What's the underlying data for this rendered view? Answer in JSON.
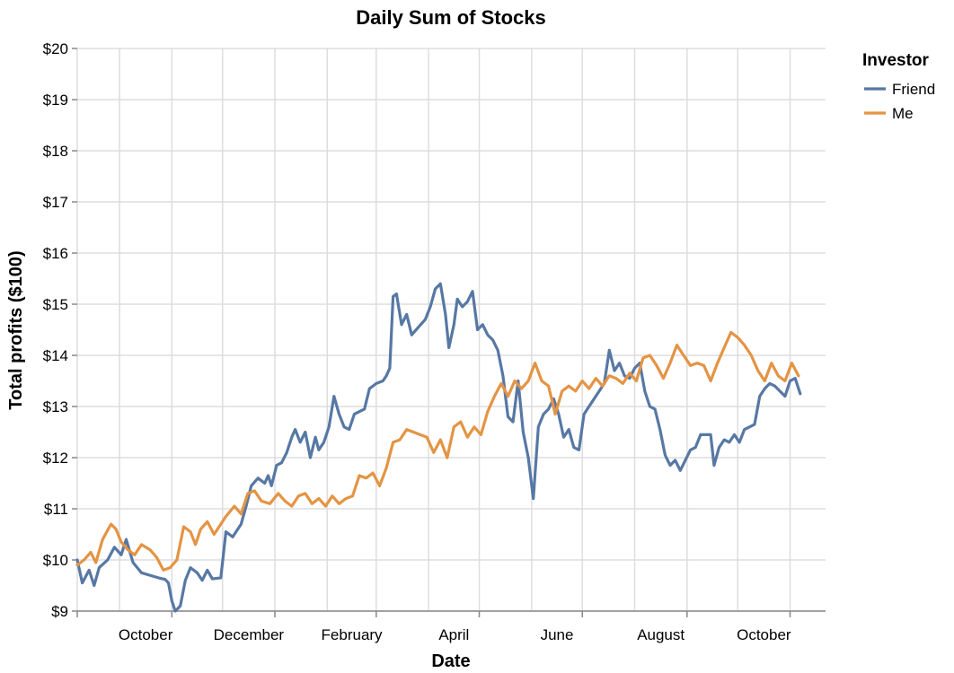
{
  "chart_data": {
    "type": "line",
    "title": "Daily Sum of Stocks",
    "xlabel": "Date",
    "ylabel": "Total profits ($100)",
    "x_ticks": [
      "October",
      "December",
      "February",
      "April",
      "June",
      "August",
      "October"
    ],
    "y_ticks": [
      "$9",
      "$10",
      "$11",
      "$12",
      "$13",
      "$14",
      "$15",
      "$16",
      "$17",
      "$18",
      "$19",
      "$20"
    ],
    "ylim": [
      9,
      20
    ],
    "xlim": [
      "2019-09-06",
      "2020-11-22"
    ],
    "grid": true,
    "legend": {
      "title": "Investor",
      "position": "top-right"
    },
    "series": [
      {
        "name": "Friend",
        "color": "#5778a4",
        "points": [
          [
            "2019-09-06",
            10.0
          ],
          [
            "2019-09-09",
            9.55
          ],
          [
            "2019-09-13",
            9.8
          ],
          [
            "2019-09-16",
            9.5
          ],
          [
            "2019-09-19",
            9.85
          ],
          [
            "2019-09-24",
            10.0
          ],
          [
            "2019-09-28",
            10.25
          ],
          [
            "2019-10-02",
            10.1
          ],
          [
            "2019-10-05",
            10.4
          ],
          [
            "2019-10-09",
            9.95
          ],
          [
            "2019-10-14",
            9.75
          ],
          [
            "2019-10-19",
            9.7
          ],
          [
            "2019-10-24",
            9.65
          ],
          [
            "2019-10-28",
            9.62
          ],
          [
            "2019-10-30",
            9.55
          ],
          [
            "2019-11-01",
            9.2
          ],
          [
            "2019-11-03",
            9.0
          ],
          [
            "2019-11-06",
            9.1
          ],
          [
            "2019-11-09",
            9.6
          ],
          [
            "2019-11-12",
            9.85
          ],
          [
            "2019-11-16",
            9.75
          ],
          [
            "2019-11-19",
            9.6
          ],
          [
            "2019-11-22",
            9.8
          ],
          [
            "2019-11-25",
            9.63
          ],
          [
            "2019-11-30",
            9.65
          ],
          [
            "2019-12-03",
            10.55
          ],
          [
            "2019-12-07",
            10.45
          ],
          [
            "2019-12-12",
            10.7
          ],
          [
            "2019-12-15",
            11.05
          ],
          [
            "2019-12-18",
            11.45
          ],
          [
            "2019-12-22",
            11.6
          ],
          [
            "2019-12-26",
            11.5
          ],
          [
            "2019-12-28",
            11.65
          ],
          [
            "2019-12-30",
            11.45
          ],
          [
            "2020-01-02",
            11.85
          ],
          [
            "2020-01-05",
            11.9
          ],
          [
            "2020-01-08",
            12.1
          ],
          [
            "2020-01-11",
            12.4
          ],
          [
            "2020-01-13",
            12.55
          ],
          [
            "2020-01-16",
            12.3
          ],
          [
            "2020-01-19",
            12.5
          ],
          [
            "2020-01-22",
            12.0
          ],
          [
            "2020-01-25",
            12.4
          ],
          [
            "2020-01-27",
            12.15
          ],
          [
            "2020-01-30",
            12.3
          ],
          [
            "2020-02-02",
            12.6
          ],
          [
            "2020-02-05",
            13.2
          ],
          [
            "2020-02-08",
            12.85
          ],
          [
            "2020-02-11",
            12.6
          ],
          [
            "2020-02-14",
            12.55
          ],
          [
            "2020-02-17",
            12.85
          ],
          [
            "2020-02-20",
            12.9
          ],
          [
            "2020-02-23",
            12.95
          ],
          [
            "2020-02-26",
            13.35
          ],
          [
            "2020-03-01",
            13.45
          ],
          [
            "2020-03-05",
            13.5
          ],
          [
            "2020-03-07",
            13.6
          ],
          [
            "2020-03-09",
            13.75
          ],
          [
            "2020-03-11",
            15.15
          ],
          [
            "2020-03-13",
            15.2
          ],
          [
            "2020-03-16",
            14.6
          ],
          [
            "2020-03-19",
            14.8
          ],
          [
            "2020-03-22",
            14.4
          ],
          [
            "2020-03-26",
            14.55
          ],
          [
            "2020-03-30",
            14.7
          ],
          [
            "2020-04-02",
            14.95
          ],
          [
            "2020-04-05",
            15.3
          ],
          [
            "2020-04-08",
            15.4
          ],
          [
            "2020-04-11",
            14.8
          ],
          [
            "2020-04-13",
            14.15
          ],
          [
            "2020-04-16",
            14.6
          ],
          [
            "2020-04-18",
            15.1
          ],
          [
            "2020-04-21",
            14.95
          ],
          [
            "2020-04-24",
            15.05
          ],
          [
            "2020-04-27",
            15.25
          ],
          [
            "2020-04-30",
            14.5
          ],
          [
            "2020-05-03",
            14.6
          ],
          [
            "2020-05-06",
            14.4
          ],
          [
            "2020-05-09",
            14.3
          ],
          [
            "2020-05-12",
            14.1
          ],
          [
            "2020-05-15",
            13.6
          ],
          [
            "2020-05-18",
            12.8
          ],
          [
            "2020-05-21",
            12.7
          ],
          [
            "2020-05-24",
            13.5
          ],
          [
            "2020-05-27",
            12.5
          ],
          [
            "2020-05-30",
            12.0
          ],
          [
            "2020-06-02",
            11.2
          ],
          [
            "2020-06-05",
            12.6
          ],
          [
            "2020-06-08",
            12.85
          ],
          [
            "2020-06-11",
            12.95
          ],
          [
            "2020-06-14",
            13.15
          ],
          [
            "2020-06-17",
            12.85
          ],
          [
            "2020-06-20",
            12.4
          ],
          [
            "2020-06-23",
            12.55
          ],
          [
            "2020-06-26",
            12.2
          ],
          [
            "2020-06-29",
            12.15
          ],
          [
            "2020-07-02",
            12.85
          ],
          [
            "2020-07-05",
            13.0
          ],
          [
            "2020-07-08",
            13.15
          ],
          [
            "2020-07-11",
            13.3
          ],
          [
            "2020-07-14",
            13.45
          ],
          [
            "2020-07-17",
            14.1
          ],
          [
            "2020-07-20",
            13.7
          ],
          [
            "2020-07-23",
            13.85
          ],
          [
            "2020-07-26",
            13.6
          ],
          [
            "2020-07-29",
            13.55
          ],
          [
            "2020-08-01",
            13.75
          ],
          [
            "2020-08-04",
            13.85
          ],
          [
            "2020-08-07",
            13.3
          ],
          [
            "2020-08-10",
            13.0
          ],
          [
            "2020-08-13",
            12.95
          ],
          [
            "2020-08-16",
            12.55
          ],
          [
            "2020-08-19",
            12.05
          ],
          [
            "2020-08-22",
            11.85
          ],
          [
            "2020-08-25",
            11.95
          ],
          [
            "2020-08-28",
            11.75
          ],
          [
            "2020-08-31",
            11.95
          ],
          [
            "2020-09-03",
            12.15
          ],
          [
            "2020-09-06",
            12.2
          ],
          [
            "2020-09-09",
            12.45
          ],
          [
            "2020-09-12",
            12.45
          ],
          [
            "2020-09-15",
            12.45
          ],
          [
            "2020-09-17",
            11.85
          ],
          [
            "2020-09-20",
            12.2
          ],
          [
            "2020-09-23",
            12.35
          ],
          [
            "2020-09-26",
            12.3
          ],
          [
            "2020-09-29",
            12.45
          ],
          [
            "2020-10-02",
            12.3
          ],
          [
            "2020-10-05",
            12.55
          ],
          [
            "2020-10-08",
            12.6
          ],
          [
            "2020-10-11",
            12.65
          ],
          [
            "2020-10-14",
            13.2
          ],
          [
            "2020-10-17",
            13.35
          ],
          [
            "2020-10-20",
            13.45
          ],
          [
            "2020-10-23",
            13.4
          ],
          [
            "2020-10-26",
            13.3
          ],
          [
            "2020-10-29",
            13.2
          ],
          [
            "2020-11-01",
            13.5
          ],
          [
            "2020-11-04",
            13.55
          ],
          [
            "2020-11-07",
            13.25
          ]
        ]
      },
      {
        "name": "Me",
        "color": "#e49444",
        "points": [
          [
            "2019-09-06",
            9.9
          ],
          [
            "2019-09-10",
            10.0
          ],
          [
            "2019-09-14",
            10.15
          ],
          [
            "2019-09-17",
            9.95
          ],
          [
            "2019-09-21",
            10.4
          ],
          [
            "2019-09-26",
            10.7
          ],
          [
            "2019-09-29",
            10.6
          ],
          [
            "2019-10-02",
            10.35
          ],
          [
            "2019-10-06",
            10.2
          ],
          [
            "2019-10-10",
            10.1
          ],
          [
            "2019-10-14",
            10.3
          ],
          [
            "2019-10-19",
            10.2
          ],
          [
            "2019-10-23",
            10.05
          ],
          [
            "2019-10-27",
            9.8
          ],
          [
            "2019-10-31",
            9.85
          ],
          [
            "2019-11-04",
            10.0
          ],
          [
            "2019-11-08",
            10.65
          ],
          [
            "2019-11-12",
            10.55
          ],
          [
            "2019-11-15",
            10.3
          ],
          [
            "2019-11-18",
            10.6
          ],
          [
            "2019-11-22",
            10.75
          ],
          [
            "2019-11-26",
            10.5
          ],
          [
            "2019-11-30",
            10.7
          ],
          [
            "2019-12-03",
            10.85
          ],
          [
            "2019-12-08",
            11.05
          ],
          [
            "2019-12-12",
            10.9
          ],
          [
            "2019-12-16",
            11.3
          ],
          [
            "2019-12-20",
            11.35
          ],
          [
            "2019-12-24",
            11.15
          ],
          [
            "2019-12-29",
            11.1
          ],
          [
            "2020-01-03",
            11.3
          ],
          [
            "2020-01-07",
            11.15
          ],
          [
            "2020-01-11",
            11.05
          ],
          [
            "2020-01-15",
            11.25
          ],
          [
            "2020-01-19",
            11.3
          ],
          [
            "2020-01-23",
            11.1
          ],
          [
            "2020-01-27",
            11.2
          ],
          [
            "2020-01-31",
            11.05
          ],
          [
            "2020-02-04",
            11.25
          ],
          [
            "2020-02-08",
            11.1
          ],
          [
            "2020-02-12",
            11.2
          ],
          [
            "2020-02-16",
            11.25
          ],
          [
            "2020-02-20",
            11.65
          ],
          [
            "2020-02-24",
            11.6
          ],
          [
            "2020-02-28",
            11.7
          ],
          [
            "2020-03-03",
            11.45
          ],
          [
            "2020-03-07",
            11.8
          ],
          [
            "2020-03-11",
            12.3
          ],
          [
            "2020-03-15",
            12.35
          ],
          [
            "2020-03-19",
            12.55
          ],
          [
            "2020-03-23",
            12.5
          ],
          [
            "2020-03-27",
            12.45
          ],
          [
            "2020-03-31",
            12.4
          ],
          [
            "2020-04-04",
            12.1
          ],
          [
            "2020-04-08",
            12.35
          ],
          [
            "2020-04-12",
            12.0
          ],
          [
            "2020-04-16",
            12.6
          ],
          [
            "2020-04-20",
            12.7
          ],
          [
            "2020-04-24",
            12.4
          ],
          [
            "2020-04-28",
            12.6
          ],
          [
            "2020-05-02",
            12.45
          ],
          [
            "2020-05-06",
            12.9
          ],
          [
            "2020-05-10",
            13.2
          ],
          [
            "2020-05-14",
            13.45
          ],
          [
            "2020-05-18",
            13.2
          ],
          [
            "2020-05-22",
            13.5
          ],
          [
            "2020-05-26",
            13.35
          ],
          [
            "2020-05-30",
            13.5
          ],
          [
            "2020-06-03",
            13.85
          ],
          [
            "2020-06-07",
            13.5
          ],
          [
            "2020-06-11",
            13.4
          ],
          [
            "2020-06-15",
            12.85
          ],
          [
            "2020-06-19",
            13.3
          ],
          [
            "2020-06-23",
            13.4
          ],
          [
            "2020-06-27",
            13.3
          ],
          [
            "2020-07-01",
            13.5
          ],
          [
            "2020-07-05",
            13.35
          ],
          [
            "2020-07-09",
            13.55
          ],
          [
            "2020-07-13",
            13.4
          ],
          [
            "2020-07-17",
            13.6
          ],
          [
            "2020-07-21",
            13.55
          ],
          [
            "2020-07-25",
            13.45
          ],
          [
            "2020-07-29",
            13.65
          ],
          [
            "2020-08-02",
            13.5
          ],
          [
            "2020-08-06",
            13.95
          ],
          [
            "2020-08-10",
            14.0
          ],
          [
            "2020-08-14",
            13.8
          ],
          [
            "2020-08-18",
            13.55
          ],
          [
            "2020-08-22",
            13.85
          ],
          [
            "2020-08-26",
            14.2
          ],
          [
            "2020-08-30",
            14.0
          ],
          [
            "2020-09-03",
            13.8
          ],
          [
            "2020-09-07",
            13.85
          ],
          [
            "2020-09-11",
            13.8
          ],
          [
            "2020-09-15",
            13.5
          ],
          [
            "2020-09-19",
            13.85
          ],
          [
            "2020-09-23",
            14.15
          ],
          [
            "2020-09-27",
            14.45
          ],
          [
            "2020-10-01",
            14.35
          ],
          [
            "2020-10-05",
            14.2
          ],
          [
            "2020-10-09",
            14.0
          ],
          [
            "2020-10-13",
            13.7
          ],
          [
            "2020-10-17",
            13.5
          ],
          [
            "2020-10-21",
            13.85
          ],
          [
            "2020-10-25",
            13.6
          ],
          [
            "2020-10-29",
            13.5
          ],
          [
            "2020-11-02",
            13.85
          ],
          [
            "2020-11-06",
            13.6
          ]
        ]
      }
    ]
  }
}
